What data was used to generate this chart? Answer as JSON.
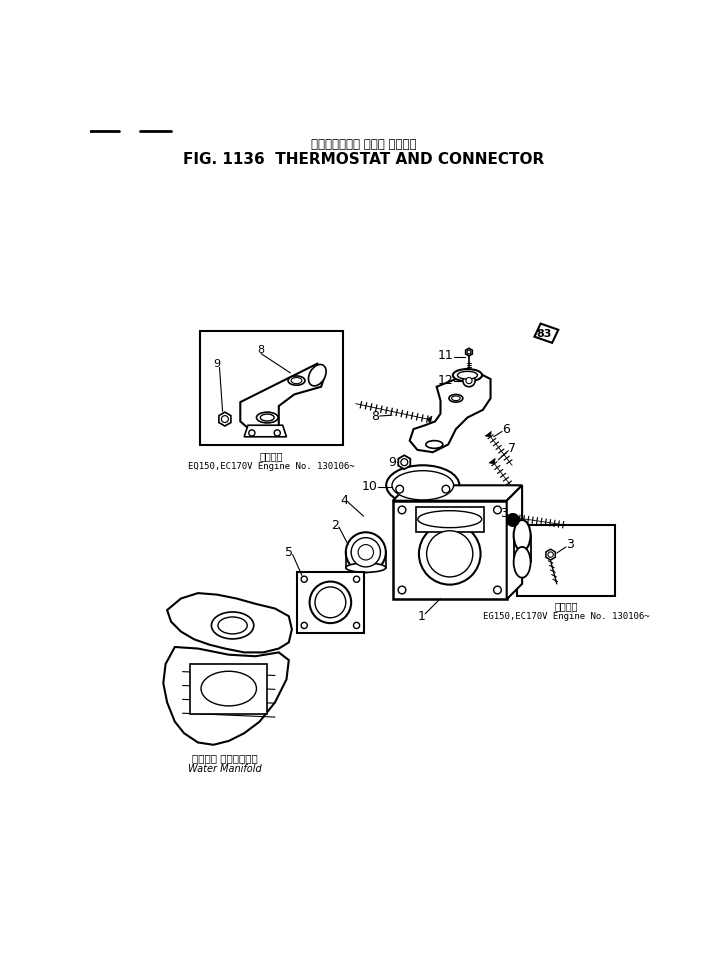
{
  "title_japanese": "サーモスタット および コネクタ",
  "title_english": "FIG. 1136  THERMOSTAT AND CONNECTOR",
  "bg_color": "#ffffff",
  "text_color": "#000000",
  "inset1_caption_jp": "適用号等",
  "inset1_caption_en": "EQ150,EC170V Engine No. 130106~",
  "inset2_caption_jp": "適用号等",
  "inset2_caption_en": "EG150,EC170V Engine No. 130106~",
  "water_manifold_jp": "ウォータ マニホールド",
  "water_manifold_en": "Water Manifold",
  "stamp_text": "83"
}
